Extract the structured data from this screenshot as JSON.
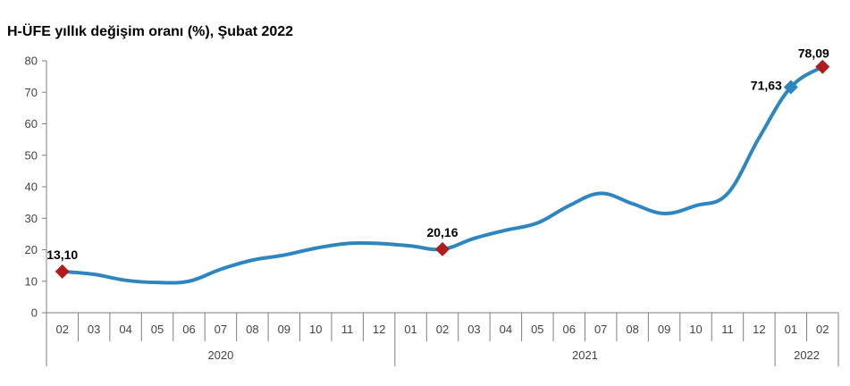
{
  "chart_data": {
    "type": "line",
    "title": "H-ÜFE yıllık değişim oranı (%), Şubat 2022",
    "xlabel": "",
    "ylabel": "",
    "ylim": [
      0,
      80
    ],
    "yticks": [
      0,
      10,
      20,
      30,
      40,
      50,
      60,
      70,
      80
    ],
    "grid": false,
    "categories": [
      "02",
      "03",
      "04",
      "05",
      "06",
      "07",
      "08",
      "09",
      "10",
      "11",
      "12",
      "01",
      "02",
      "03",
      "04",
      "05",
      "06",
      "07",
      "08",
      "09",
      "10",
      "11",
      "12",
      "01",
      "02"
    ],
    "years": [
      {
        "label": "2020",
        "start": 0,
        "end": 10
      },
      {
        "label": "2021",
        "start": 11,
        "end": 22
      },
      {
        "label": "2022",
        "start": 23,
        "end": 24
      }
    ],
    "series": [
      {
        "values": [
          13.1,
          12.2,
          10.3,
          9.6,
          10.0,
          13.8,
          16.7,
          18.3,
          20.5,
          22.0,
          22.0,
          21.2,
          20.16,
          23.6,
          26.2,
          28.5,
          34.0,
          37.9,
          34.6,
          31.5,
          34.0,
          37.8,
          55.6,
          71.63,
          78.09
        ],
        "color": "#2e86c1"
      }
    ],
    "markers": [
      {
        "index": 0,
        "label": "13,10",
        "shape": "diamond",
        "color": "#b01c1c"
      },
      {
        "index": 12,
        "label": "20,16",
        "shape": "diamond",
        "color": "#b01c1c"
      },
      {
        "index": 23,
        "label": "71,63",
        "shape": "diamond",
        "color": "#2e86c1"
      },
      {
        "index": 24,
        "label": "78,09",
        "shape": "diamond",
        "color": "#b01c1c"
      }
    ],
    "axis_color": "#7f7f7f"
  }
}
